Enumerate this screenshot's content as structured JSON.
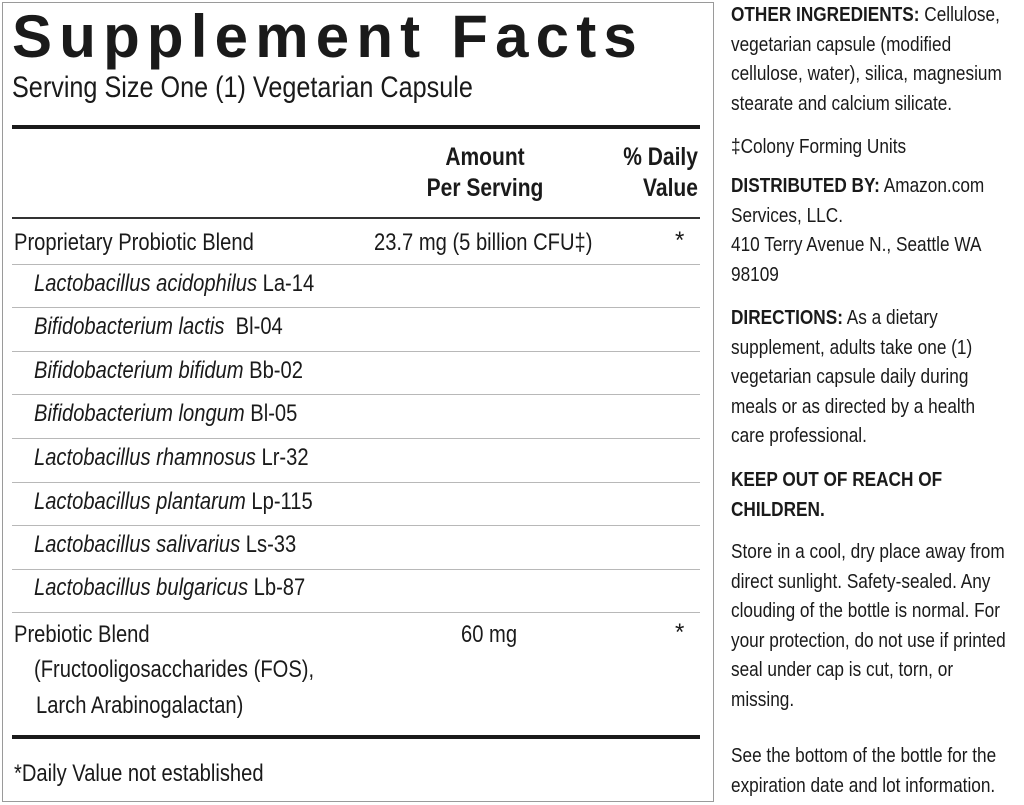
{
  "facts": {
    "title": "Supplement Facts",
    "serving_size": "Serving Size One (1) Vegetarian Capsule",
    "header": {
      "amount_line1": "Amount",
      "amount_line2": "Per Serving",
      "dv_line1": "% Daily",
      "dv_line2": "Value"
    },
    "probiotic": {
      "name": "Proprietary Probiotic Blend",
      "amount": "23.7 mg (5 billion CFU‡)",
      "dv": "*",
      "strains": [
        {
          "species": "Lactobacillus acidophilus",
          "code": " La-14"
        },
        {
          "species": "Bifidobacterium lactis",
          "code": "  Bl-04"
        },
        {
          "species": "Bifidobacterium bifidum",
          "code": " Bb-02"
        },
        {
          "species": "Bifidobacterium longum",
          "code": " Bl-05"
        },
        {
          "species": "Lactobacillus rhamnosus",
          "code": " Lr-32"
        },
        {
          "species": "Lactobacillus plantarum",
          "code": " Lp-115"
        },
        {
          "species": "Lactobacillus salivarius",
          "code": " Ls-33"
        },
        {
          "species": "Lactobacillus bulgaricus",
          "code": " Lb-87"
        }
      ]
    },
    "prebiotic": {
      "name": "Prebiotic Blend",
      "detail_line1": "(Fructooligosaccharides (FOS),",
      "detail_line2": "Larch Arabinogalactan)",
      "amount": "60 mg",
      "dv": "*"
    },
    "footnote": "*Daily Value not established"
  },
  "info": {
    "other_ingredients": {
      "label": "OTHER INGREDIENTS:",
      "lines": [
        " Cellulose,",
        "vegetarian capsule (modified",
        "cellulose, water), silica, magnesium",
        "stearate and calcium silicate."
      ]
    },
    "cfu_note": "‡Colony Forming Units",
    "distributed": {
      "label": "DISTRIBUTED BY:",
      "lines": [
        " Amazon.com",
        "Services, LLC.",
        "410 Terry Avenue N., Seattle WA",
        "98109"
      ]
    },
    "directions": {
      "label": "DIRECTIONS:",
      "lines": [
        " As a dietary",
        "supplement, adults take one (1)",
        "vegetarian capsule daily during",
        "meals or as directed by a health",
        "care professional."
      ]
    },
    "warning": {
      "lines": [
        "KEEP OUT OF REACH OF",
        "CHILDREN."
      ]
    },
    "storage": {
      "lines": [
        "Store in a cool, dry place away from",
        "direct sunlight. Safety-sealed. Any",
        "clouding of the bottle is normal. For",
        "your protection, do not use if printed",
        "seal under cap is cut, torn, or",
        "missing."
      ]
    },
    "expiration": {
      "lines": [
        "See the bottom of the bottle for the",
        "expiration date and lot information."
      ]
    }
  }
}
